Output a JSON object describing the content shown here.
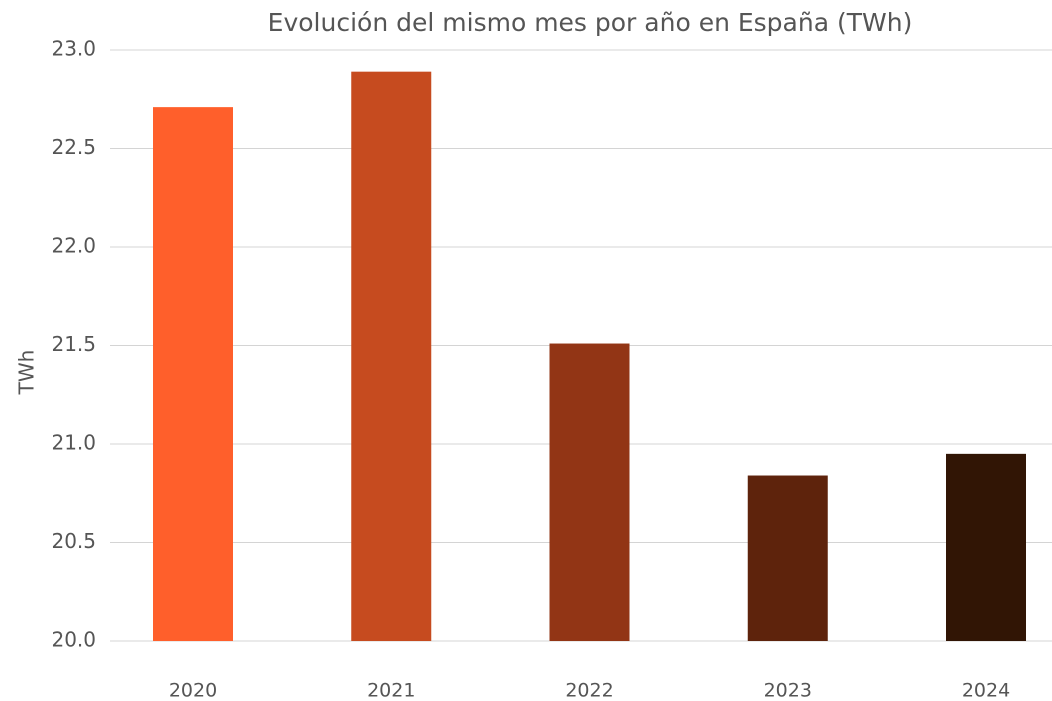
{
  "chart_data": {
    "type": "bar",
    "title": "Evolución del mismo mes por año en España (TWh)",
    "y_label": "TWh",
    "categories": [
      "2020",
      "2021",
      "2022",
      "2023",
      "2024"
    ],
    "values": [
      22.71,
      22.89,
      21.51,
      20.84,
      20.95
    ],
    "colors": [
      "#ff5f2b",
      "#c64b1f",
      "#923515",
      "#5e230c",
      "#311505"
    ],
    "ylim": [
      20,
      23
    ],
    "yticks": [
      {
        "value": 20,
        "label": "20.0"
      },
      {
        "value": 20.5,
        "label": "20.5"
      },
      {
        "value": 21,
        "label": "21.0"
      },
      {
        "value": 21.5,
        "label": "21.5"
      },
      {
        "value": 22,
        "label": "22.0"
      },
      {
        "value": 22.5,
        "label": "22.5"
      },
      {
        "value": 23,
        "label": "23.0"
      }
    ],
    "grid": true
  }
}
